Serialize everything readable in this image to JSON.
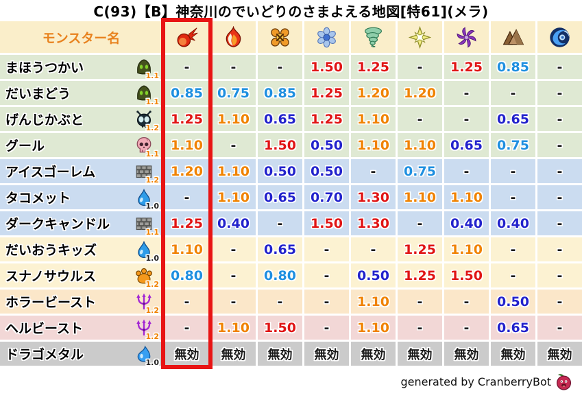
{
  "footer": {
    "credit": "generated by CranberryBot",
    "icon": "cranberry-face-icon"
  },
  "colors": {
    "highlight_border": "#e81414",
    "value_red": "#e01414",
    "value_orange": "#f08200",
    "value_light_blue": "#1e8fe0",
    "value_dark_blue": "#2222cc",
    "value_neutral": "#1a1a1a",
    "badge_orange": "#f08200",
    "badge_black": "#222222",
    "header_bg": "#faeeca",
    "header_text": "#e8821e",
    "row_green": "#dfe9d3",
    "row_blue": "#cbdcf0",
    "row_yellow": "#fcf2d2",
    "row_orange": "#fbe7c9",
    "row_pink": "#f2d7d6",
    "row_gray": "#cbcbcb"
  },
  "chart_data": {
    "type": "table",
    "title": "C(93)【B】神奈川のでいどりのさまよえる地図[特61](メラ)",
    "name_column_header": "モンスター名",
    "element_columns": [
      {
        "icon": "fireball-icon",
        "highlighted": true
      },
      {
        "icon": "flame-icon",
        "highlighted": false
      },
      {
        "icon": "explosion-icon",
        "highlighted": false
      },
      {
        "icon": "snowflake-icon",
        "highlighted": false
      },
      {
        "icon": "tornado-icon",
        "highlighted": false
      },
      {
        "icon": "sparkle-icon",
        "highlighted": false
      },
      {
        "icon": "pinwheel-icon",
        "highlighted": false
      },
      {
        "icon": "mountain-icon",
        "highlighted": false
      },
      {
        "icon": "wave-icon",
        "highlighted": false
      }
    ],
    "immune_label": "無効",
    "rows": [
      {
        "monster": "まほうつかい",
        "family_icon": "mage-hood-icon",
        "badge": "1.1",
        "row_color": "green",
        "values": [
          "-",
          "-",
          "-",
          "1.50",
          "1.25",
          "-",
          "1.25",
          "0.85",
          "-"
        ]
      },
      {
        "monster": "だいまどう",
        "family_icon": "mage-hood-icon",
        "badge": "1.1",
        "row_color": "green",
        "values": [
          "0.85",
          "0.75",
          "0.85",
          "1.25",
          "1.20",
          "1.20",
          "-",
          "-",
          "-"
        ]
      },
      {
        "monster": "げんじかぶと",
        "family_icon": "beetle-icon",
        "badge": "1.2",
        "row_color": "green",
        "values": [
          "1.25",
          "1.10",
          "0.65",
          "1.25",
          "1.10",
          "-",
          "-",
          "0.65",
          "-"
        ]
      },
      {
        "monster": "グール",
        "family_icon": "skull-icon",
        "badge": "1.1",
        "row_color": "green",
        "values": [
          "1.10",
          "-",
          "1.50",
          "0.50",
          "1.10",
          "1.10",
          "0.65",
          "0.75",
          "-"
        ]
      },
      {
        "monster": "アイスゴーレム",
        "family_icon": "brick-wall-icon",
        "badge": "1.2",
        "row_color": "blue",
        "values": [
          "1.20",
          "1.10",
          "0.50",
          "0.50",
          "-",
          "0.75",
          "-",
          "-",
          "-"
        ]
      },
      {
        "monster": "タコメット",
        "family_icon": "water-drop-icon",
        "badge": "1.0",
        "row_color": "blue",
        "values": [
          "-",
          "1.10",
          "0.65",
          "0.70",
          "1.30",
          "1.10",
          "1.10",
          "-",
          "-"
        ]
      },
      {
        "monster": "ダークキャンドル",
        "family_icon": "brick-wall-icon",
        "badge": "1.1",
        "row_color": "blue",
        "values": [
          "1.25",
          "0.40",
          "-",
          "1.50",
          "1.30",
          "-",
          "0.40",
          "0.40",
          "-"
        ]
      },
      {
        "monster": "だいおうキッズ",
        "family_icon": "water-drop-icon",
        "badge": "1.0",
        "row_color": "yellow",
        "values": [
          "1.10",
          "-",
          "0.65",
          "-",
          "-",
          "1.25",
          "1.10",
          "-",
          "-"
        ]
      },
      {
        "monster": "スナノサウルス",
        "family_icon": "paw-icon",
        "badge": "1.2",
        "row_color": "yellow",
        "values": [
          "0.80",
          "-",
          "0.80",
          "-",
          "0.50",
          "1.25",
          "1.50",
          "-",
          "-"
        ]
      },
      {
        "monster": "ホラービースト",
        "family_icon": "trident-icon",
        "badge": "1.2",
        "row_color": "orange",
        "values": [
          "-",
          "-",
          "-",
          "-",
          "1.10",
          "-",
          "-",
          "0.50",
          "-"
        ]
      },
      {
        "monster": "ヘルビースト",
        "family_icon": "trident-icon",
        "badge": "1.2",
        "row_color": "pink",
        "values": [
          "-",
          "1.10",
          "1.50",
          "-",
          "1.10",
          "-",
          "-",
          "0.65",
          "-"
        ]
      },
      {
        "monster": "ドラゴメタル",
        "family_icon": "slime-icon",
        "badge": "1.0",
        "row_color": "gray",
        "values": [
          "無効",
          "無効",
          "無効",
          "無効",
          "無効",
          "無効",
          "無効",
          "無効",
          "無効"
        ]
      }
    ]
  }
}
